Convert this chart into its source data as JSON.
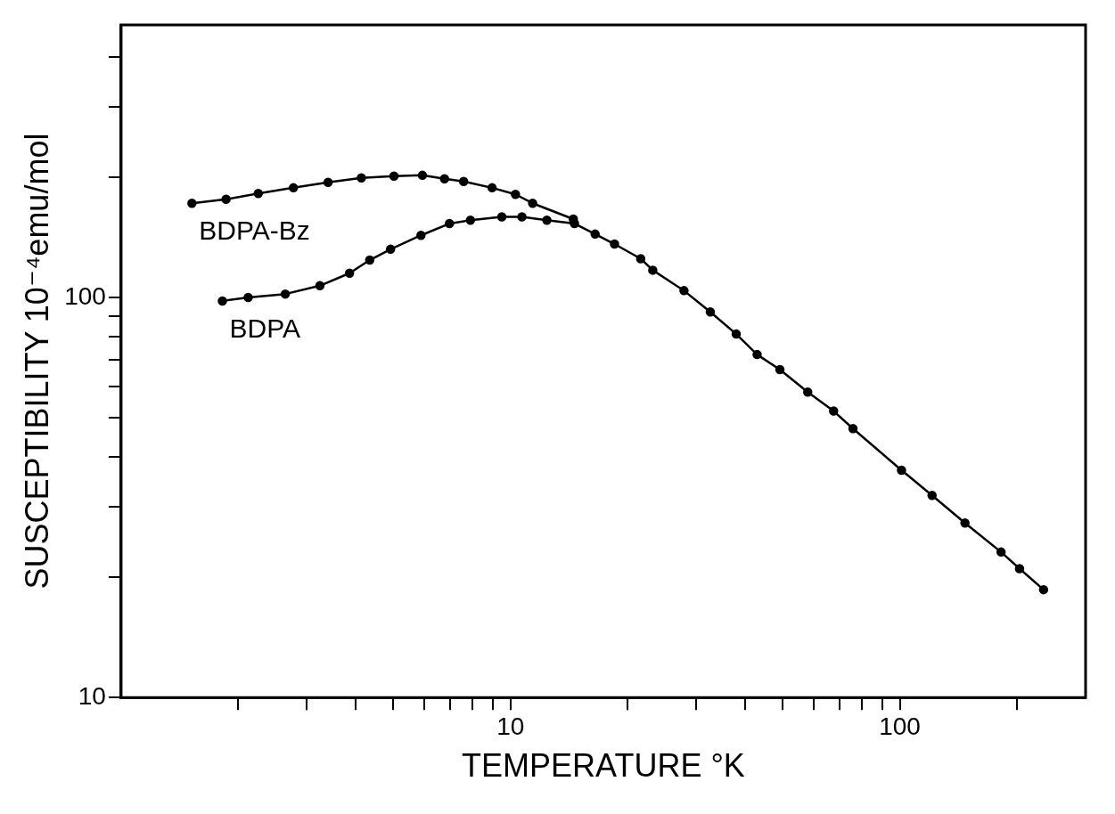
{
  "chart_data": {
    "type": "line",
    "xlabel": "TEMPERATURE °K",
    "ylabel": "SUSCEPTIBILITY 10⁻⁴emu/mol",
    "log": "xy",
    "grid": false,
    "legend": false,
    "marker": "circle",
    "line_style": "solid",
    "xlim": [
      1,
      300
    ],
    "ylim": [
      10,
      480
    ],
    "xticks": [
      {
        "value": 2,
        "label": null
      },
      {
        "value": 3,
        "label": null
      },
      {
        "value": 4,
        "label": null
      },
      {
        "value": 5,
        "label": null
      },
      {
        "value": 6,
        "label": null
      },
      {
        "value": 7,
        "label": null
      },
      {
        "value": 8,
        "label": null
      },
      {
        "value": 9,
        "label": null
      },
      10,
      {
        "value": 20,
        "label": null
      },
      {
        "value": 30,
        "label": null
      },
      {
        "value": 40,
        "label": null
      },
      {
        "value": 50,
        "label": null
      },
      {
        "value": 60,
        "label": null
      },
      {
        "value": 70,
        "label": null
      },
      {
        "value": 80,
        "label": null
      },
      {
        "value": 90,
        "label": null
      },
      100,
      {
        "value": 200,
        "label": null
      }
    ],
    "yticks": [
      10,
      {
        "value": 20,
        "label": null
      },
      {
        "value": 30,
        "label": null
      },
      {
        "value": 40,
        "label": null
      },
      {
        "value": 50,
        "label": null
      },
      {
        "value": 60,
        "label": null
      },
      {
        "value": 70,
        "label": null
      },
      {
        "value": 80,
        "label": null
      },
      {
        "value": 90,
        "label": null
      },
      100,
      {
        "value": 200,
        "label": null
      },
      {
        "value": 300,
        "label": null
      },
      {
        "value": 400,
        "label": null
      }
    ],
    "series": [
      {
        "name": "BDPA-Bz",
        "color": "#000000",
        "x": [
          1.52,
          1.86,
          2.25,
          2.77,
          3.4,
          4.14,
          5.02,
          5.94,
          6.77,
          7.58,
          8.97,
          10.3,
          11.4,
          14.5
        ],
        "values": [
          172,
          176,
          182,
          188,
          194,
          199,
          201,
          202,
          198,
          195,
          188,
          181,
          172,
          157
        ]
      },
      {
        "name": "BDPA",
        "color": "#000000",
        "x": [
          1.82,
          2.12,
          2.64,
          3.24,
          3.86,
          4.35,
          4.92,
          5.89,
          6.97,
          7.89,
          9.5,
          10.7,
          12.4,
          14.6,
          16.5,
          18.5,
          21.6,
          23.2,
          27.9,
          32.6,
          38,
          43,
          49.2,
          58,
          67.6,
          75.8,
          101,
          121,
          147,
          182,
          203,
          234
        ],
        "values": [
          98,
          100,
          102,
          107,
          115,
          124,
          132,
          143,
          153,
          156,
          159,
          159,
          156,
          153,
          144,
          136,
          125,
          117,
          104,
          92,
          81,
          72,
          66,
          58,
          52,
          47,
          37,
          32,
          27.3,
          23.1,
          21,
          18.6
        ]
      }
    ]
  }
}
